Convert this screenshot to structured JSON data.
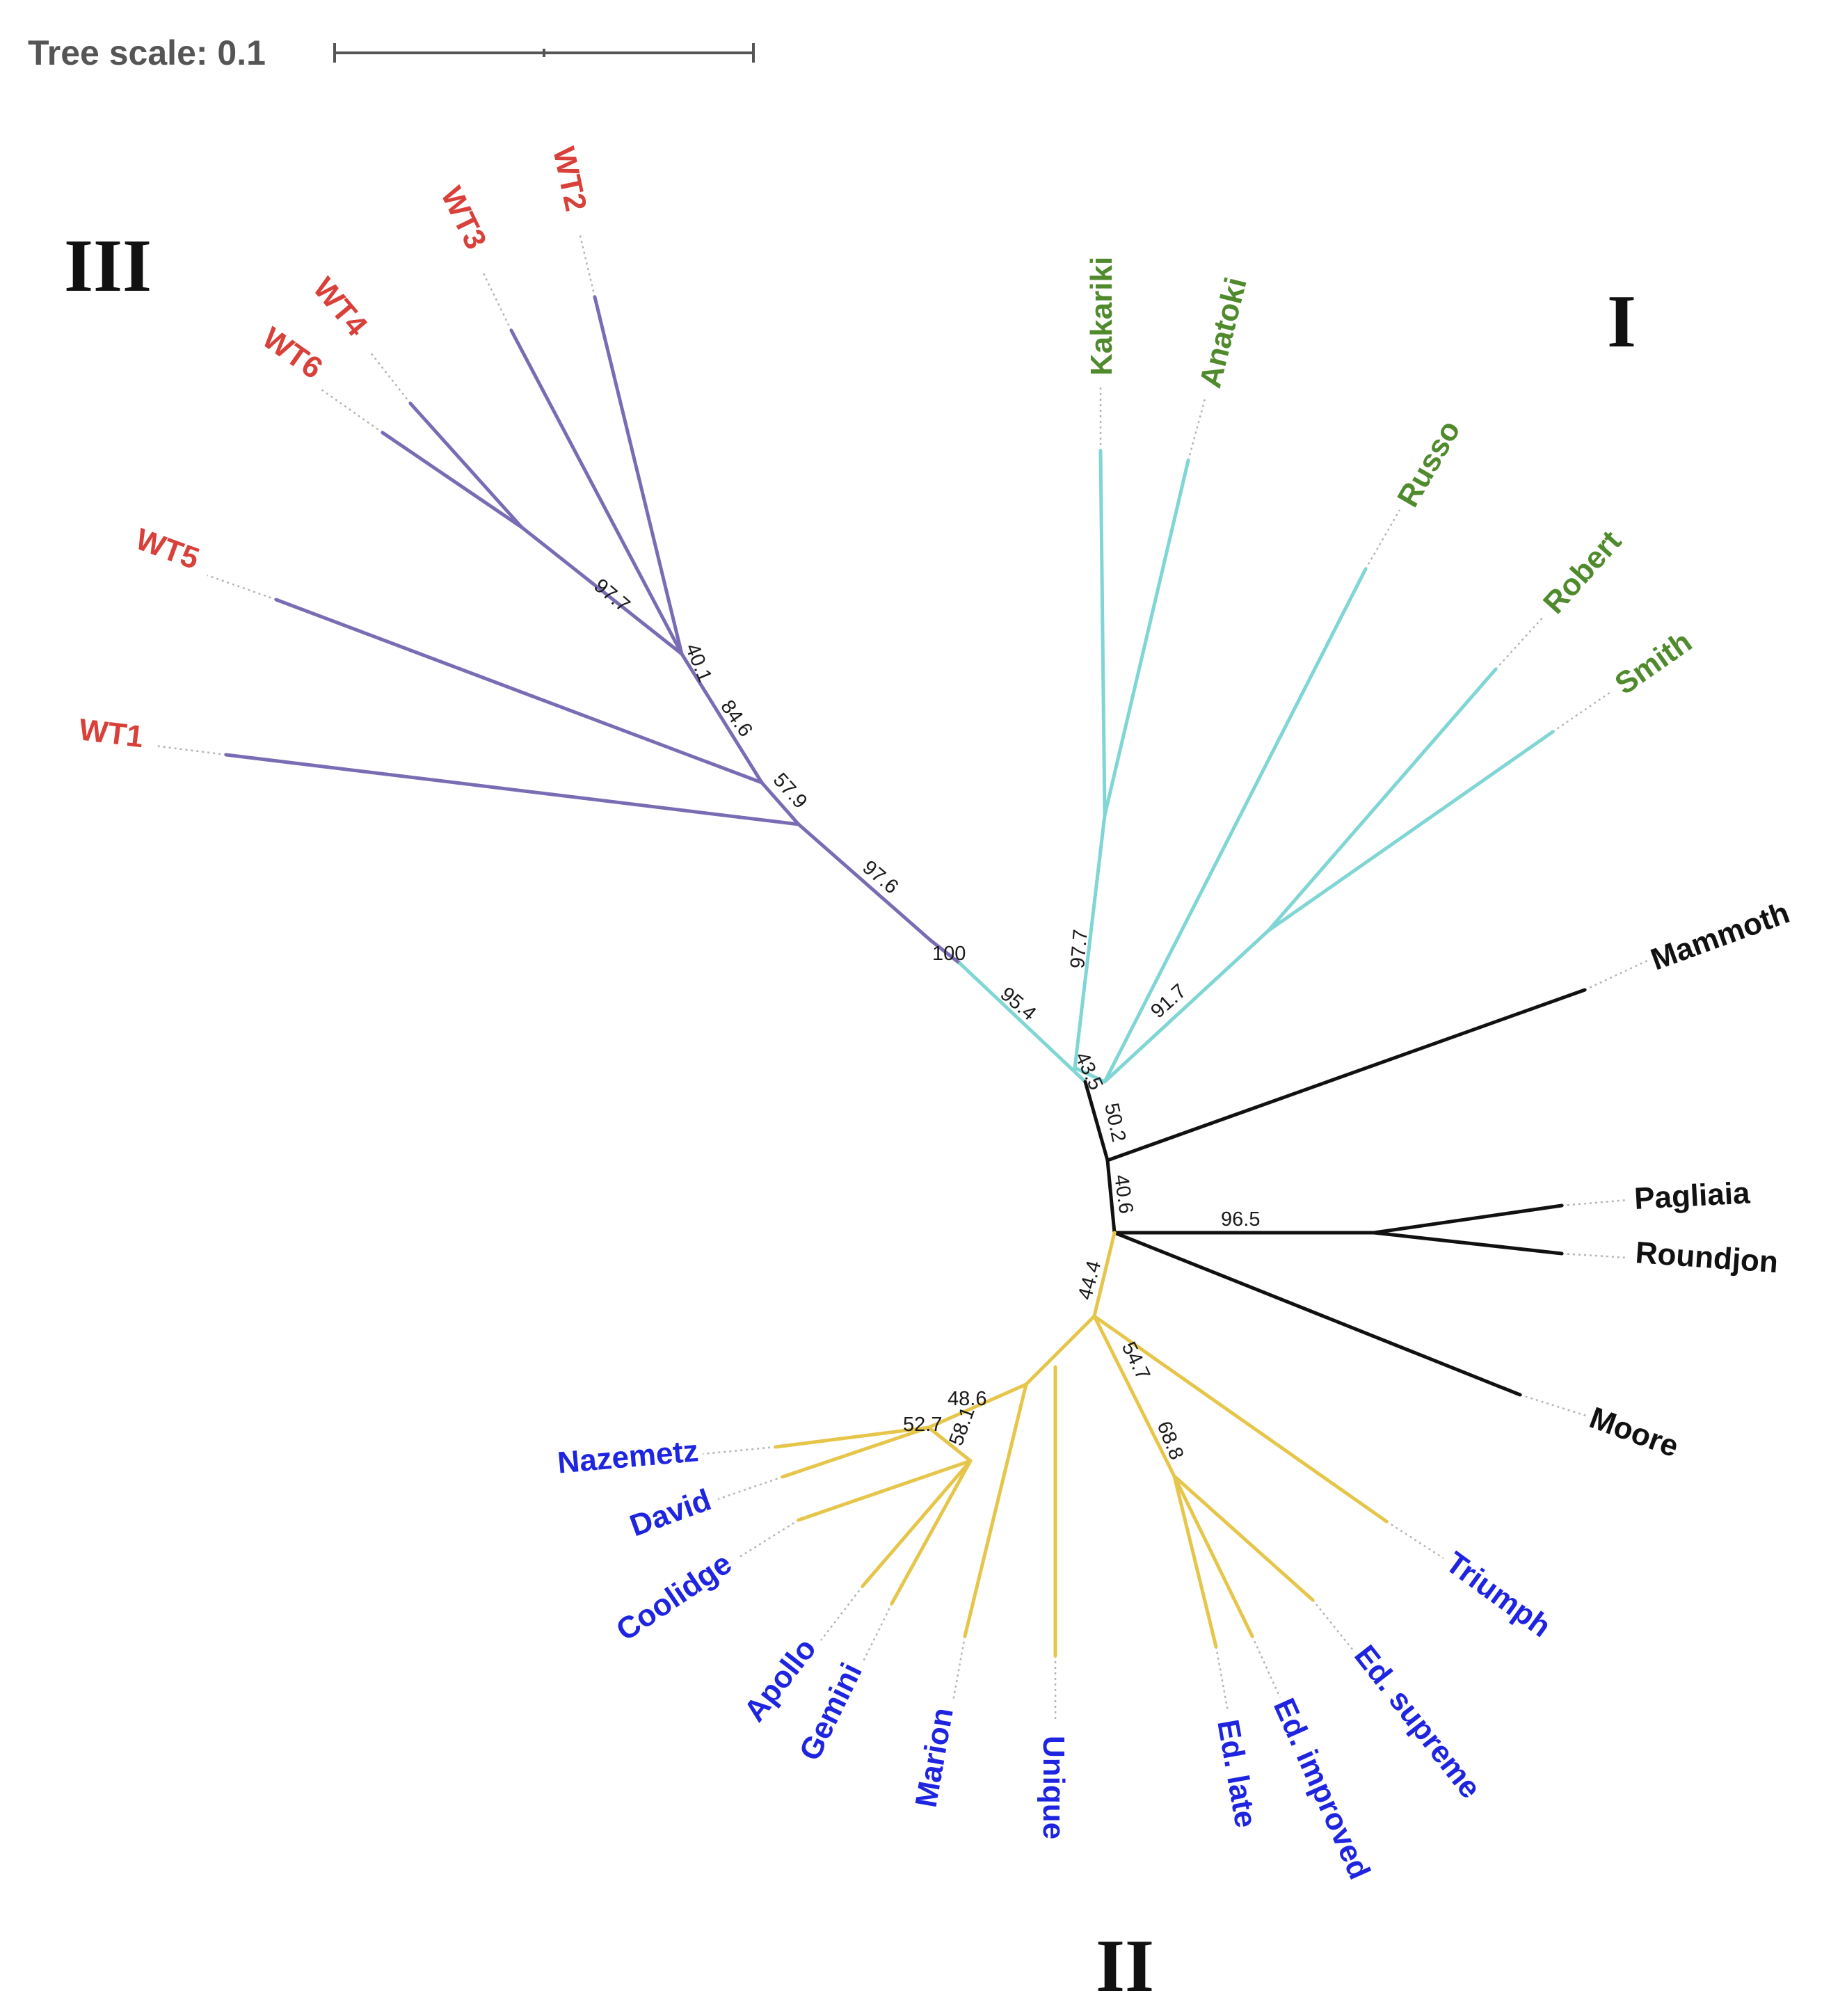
{
  "tree_scale": {
    "label": "Tree scale: 0.1"
  },
  "colors": {
    "clade_III_branch": "#7a6cb4",
    "clade_III_label": "#d9403a",
    "clade_I_branch": "#7fd6d4",
    "clade_I_label": "#4f8a2c",
    "clade_II_branch": "#e6c64a",
    "clade_II_label": "#1e24e0",
    "other_branch": "#111111",
    "other_label": "#111111"
  },
  "clade_labels": {
    "III": "III",
    "I": "I",
    "II": "II"
  },
  "leaves": {
    "WT1": "WT1",
    "WT2": "WT2",
    "WT3": "WT3",
    "WT4": "WT4",
    "WT5": "WT5",
    "WT6": "WT6",
    "Kakariki": "Kakariki",
    "Anatoki": "Anatoki",
    "Russo": "Russo",
    "Robert": "Robert",
    "Smith": "Smith",
    "Mammoth": "Mammoth",
    "Pagliaia": "Pagliaia",
    "Roundjon": "Roundjon",
    "Moore": "Moore",
    "Nazemetz": "Nazemetz",
    "David": "David",
    "Coolidge": "Coolidge",
    "Apollo": "Apollo",
    "Gemini": "Gemini",
    "Marion": "Marion",
    "Unique": "Unique",
    "Ed_late": "Ed. late",
    "Ed_improved": "Ed. improved",
    "Ed_supreme": "Ed. supreme",
    "Triumph": "Triumph"
  },
  "bootstrap": {
    "b97_7a": "97.7",
    "b40_1": "40.1",
    "b84_6": "84.6",
    "b57_9": "57.9",
    "b97_6": "97.6",
    "b100": "100",
    "b95_4": "95.4",
    "b97_7b": "97.7",
    "b91_7": "91.7",
    "b43_5": "43.5",
    "b50_2": "50.2",
    "b40_6": "40.6",
    "b96_5": "96.5",
    "b44_4": "44.4",
    "b52_7": "52.7",
    "b48_6": "48.6",
    "b58_1": "58.1",
    "b54_7": "54.7",
    "b68_8": "68.8"
  }
}
